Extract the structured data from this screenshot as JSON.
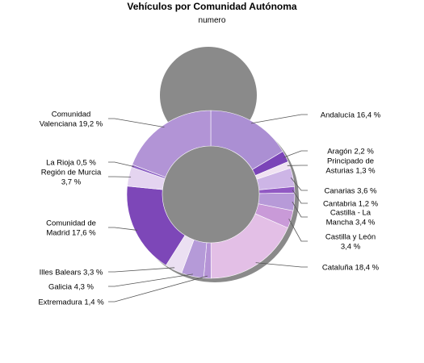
{
  "chart_data": {
    "type": "pie",
    "title": "Vehículos por Comunidad Autónoma",
    "subtitle": "numero",
    "donut": true,
    "unit": "%",
    "slices": [
      {
        "label": "Andalucía",
        "value": 16.4,
        "display": "16,4 %",
        "color": "#ab8fd3",
        "text": [
          "Andalucía 16,4 %"
        ]
      },
      {
        "label": "Aragón",
        "value": 2.2,
        "display": "2,2 %",
        "color": "#7b44b8",
        "text": [
          "Aragón 2,2 %"
        ]
      },
      {
        "label": "Principado de Asturias",
        "value": 1.3,
        "display": "1,3 %",
        "color": "#f0e2f2",
        "text": [
          "Principado de",
          "Asturias 1,3 %"
        ]
      },
      {
        "label": "Canarias",
        "value": 3.6,
        "display": "3,6 %",
        "color": "#cdb5e6",
        "text": [
          "Canarias 3,6 %"
        ]
      },
      {
        "label": "Cantabria",
        "value": 1.2,
        "display": "1,2 %",
        "color": "#9159c3",
        "text": [
          "Cantabria 1,2 %"
        ]
      },
      {
        "label": "Castilla - La Mancha",
        "value": 3.4,
        "display": "3,4 %",
        "color": "#b79ad8",
        "text": [
          "Castilla - La",
          "Mancha 3,4 %"
        ]
      },
      {
        "label": "Castilla y León",
        "value": 3.4,
        "display": "3,4 %",
        "color": "#c99ad8",
        "text": [
          "Castilla y León",
          "3,4 %"
        ]
      },
      {
        "label": "Cataluña",
        "value": 18.4,
        "display": "18,4 %",
        "color": "#e3bfe6",
        "text": [
          "Cataluña 18,4 %"
        ]
      },
      {
        "label": "Extremadura",
        "value": 1.4,
        "display": "1,4 %",
        "color": "#b593d6",
        "text": [
          "Extremadura 1,4 %"
        ]
      },
      {
        "label": "Galicia",
        "value": 4.3,
        "display": "4,3 %",
        "color": "#b59ad8",
        "text": [
          "Galicia 4,3 %"
        ]
      },
      {
        "label": "Illes Balears",
        "value": 3.3,
        "display": "3,3 %",
        "color": "#ebe0f2",
        "text": [
          "Illes Balears 3,3 %"
        ]
      },
      {
        "label": "Comunidad de Madrid",
        "value": 17.6,
        "display": "17,6 %",
        "color": "#7d47b8",
        "text": [
          "Comunidad de",
          "Madrid 17,6 %"
        ]
      },
      {
        "label": "Región de Murcia",
        "value": 3.7,
        "display": "3,7 %",
        "color": "#e4d4f0",
        "text": [
          "Región de Murcia",
          "3,7 %"
        ]
      },
      {
        "label": "La Rioja",
        "value": 0.5,
        "display": "0,5 %",
        "color": "#8f63c6",
        "text": [
          "La Rioja 0,5 %"
        ]
      },
      {
        "label": "Comunidad Valenciana",
        "value": 19.2,
        "display": "19,2 %",
        "color": "#b294d6",
        "text": [
          "Comunidad",
          "Valenciana 19,2 %"
        ]
      }
    ]
  }
}
